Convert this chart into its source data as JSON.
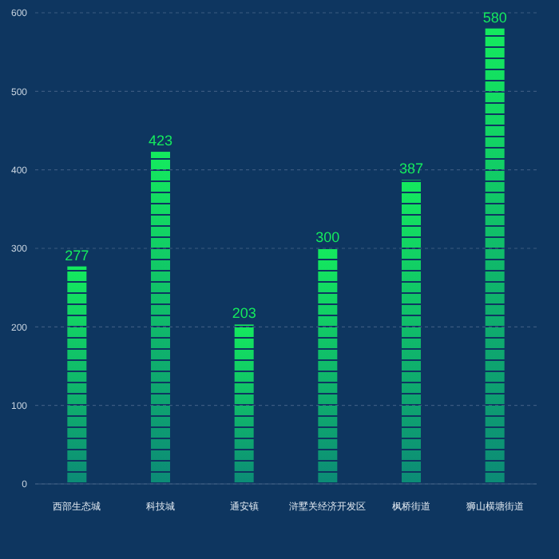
{
  "chart_data": {
    "type": "bar",
    "categories": [
      "西部生态城",
      "科技城",
      "通安镇",
      "浒墅关经济开发区",
      "枫桥街道",
      "狮山横塘街道"
    ],
    "values": [
      277,
      423,
      203,
      300,
      387,
      580
    ],
    "color": "#14ea5e",
    "ylim": [
      0,
      600
    ],
    "yticks": [
      0,
      100,
      200,
      300,
      400,
      500,
      600
    ],
    "grid": "y",
    "data_labels": true
  }
}
